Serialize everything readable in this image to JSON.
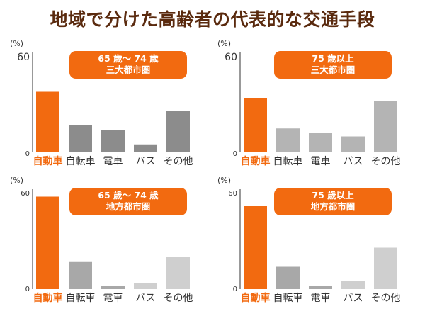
{
  "title": "地域で分けた高齢者の代表的な交通手段",
  "colors": {
    "highlight": "#f26a10",
    "top_bar": "#8c8c8c",
    "bottom_bar": "#b4b4b4",
    "title": "#5a2a0e"
  },
  "chart_data": [
    {
      "type": "bar",
      "tag_line1": "65 歳～ 74 歳",
      "tag_line2": "三大都市圏",
      "ylabel": "(%)",
      "ylim": [
        0,
        60
      ],
      "y_ticks": [
        "0",
        "60"
      ],
      "categories": [
        "自動車",
        "自転車",
        "電車",
        "バス",
        "その他"
      ],
      "values": [
        38,
        17,
        14,
        5,
        26
      ],
      "bar_colors": [
        "#f26a10",
        "#8c8c8c",
        "#8c8c8c",
        "#8c8c8c",
        "#8c8c8c"
      ],
      "highlight_index": 0
    },
    {
      "type": "bar",
      "tag_line1": "75 歳以上",
      "tag_line2": "三大都市圏",
      "ylabel": "(%)",
      "ylim": [
        0,
        60
      ],
      "y_ticks": [
        "0",
        "60"
      ],
      "categories": [
        "自動車",
        "自転車",
        "電車",
        "バス",
        "その他"
      ],
      "values": [
        34,
        15,
        12,
        10,
        32
      ],
      "bar_colors": [
        "#f26a10",
        "#b4b4b4",
        "#b4b4b4",
        "#b4b4b4",
        "#b4b4b4"
      ],
      "highlight_index": 0
    },
    {
      "type": "bar",
      "tag_line1": "65 歳～ 74 歳",
      "tag_line2": "地方都市圏",
      "ylabel": "(%)",
      "ylim": [
        0,
        60
      ],
      "y_ticks": [
        "0",
        "60"
      ],
      "categories": [
        "自動車",
        "自転車",
        "電車",
        "バス",
        "その他"
      ],
      "values": [
        58,
        17,
        2,
        4,
        20
      ],
      "bar_colors": [
        "#f26a10",
        "#a8a8a8",
        "#a8a8a8",
        "#cfcfcf",
        "#cfcfcf"
      ],
      "highlight_index": 0
    },
    {
      "type": "bar",
      "tag_line1": "75 歳以上",
      "tag_line2": "地方都市圏",
      "ylabel": "(%)",
      "ylim": [
        0,
        60
      ],
      "y_ticks": [
        "0",
        "60"
      ],
      "categories": [
        "自動車",
        "自転車",
        "電車",
        "バス",
        "その他"
      ],
      "values": [
        52,
        14,
        2,
        5,
        26
      ],
      "bar_colors": [
        "#f26a10",
        "#a8a8a8",
        "#a8a8a8",
        "#cfcfcf",
        "#cfcfcf"
      ],
      "highlight_index": 0
    }
  ]
}
